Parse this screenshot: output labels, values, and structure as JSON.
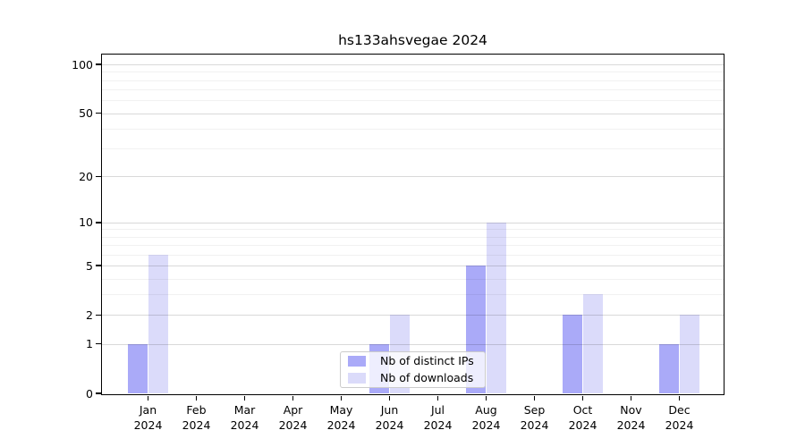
{
  "chart_data": {
    "type": "bar",
    "title": "hs133ahsvegae 2024",
    "categories": [
      "Jan 2024",
      "Feb 2024",
      "Mar 2024",
      "Apr 2024",
      "May 2024",
      "Jun 2024",
      "Jul 2024",
      "Aug 2024",
      "Sep 2024",
      "Oct 2024",
      "Nov 2024",
      "Dec 2024"
    ],
    "series": [
      {
        "name": "Nb of distinct IPs",
        "color": "#aaaaf8",
        "values": [
          1,
          0,
          0,
          0,
          0,
          1,
          0,
          5,
          0,
          2,
          0,
          1
        ]
      },
      {
        "name": "Nb of downloads",
        "color": "#dbdbfa",
        "values": [
          6,
          0,
          0,
          0,
          0,
          2,
          0,
          10,
          0,
          3,
          0,
          2
        ]
      }
    ],
    "yscale": "log10(value+1)",
    "ylim": [
      0,
      115
    ],
    "y_major_ticks": [
      0,
      1,
      2,
      5,
      10,
      20,
      50,
      100
    ],
    "y_minor_gridlines": [
      3,
      4,
      6,
      7,
      8,
      9,
      30,
      40,
      60,
      70,
      80,
      90
    ],
    "xlabel": "",
    "ylabel": "",
    "grid": "horizontal major+minor",
    "legend_position": "bottom-center-inside"
  }
}
